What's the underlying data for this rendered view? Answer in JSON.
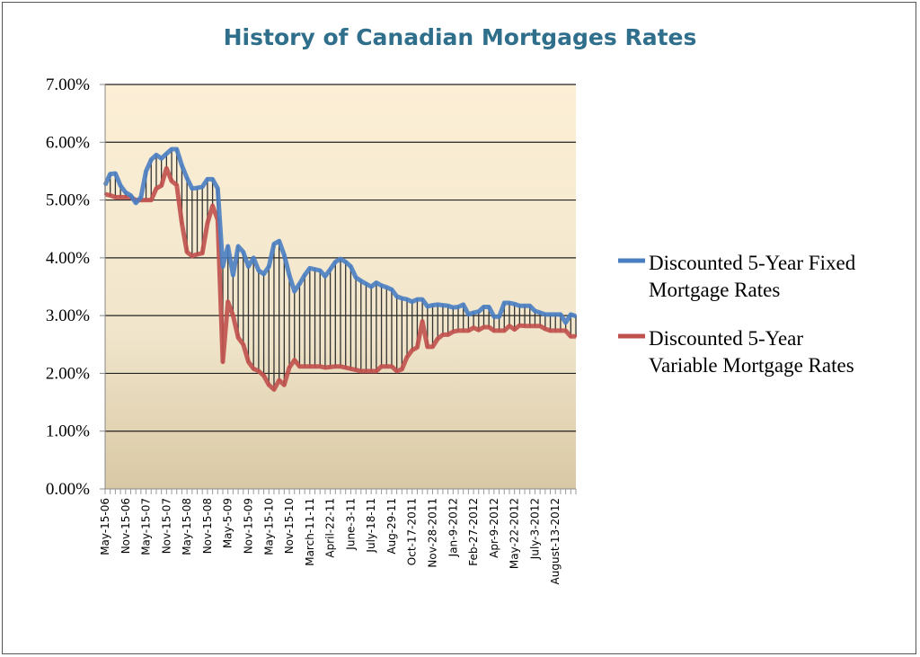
{
  "chart_data": {
    "type": "line",
    "title": "History of Canadian Mortgages Rates",
    "xlabel": "",
    "ylabel": "",
    "ylim": [
      0,
      7
    ],
    "y_ticks": [
      "0.00%",
      "1.00%",
      "2.00%",
      "3.00%",
      "4.00%",
      "5.00%",
      "6.00%",
      "7.00%"
    ],
    "grid": true,
    "legend_position": "right",
    "high_low_lines": true,
    "x_labels": [
      "May-15-06",
      "Nov-15-06",
      "May-15-07",
      "Nov-15-07",
      "May-15-08",
      "Nov-15-08",
      "May-5-09",
      "Nov-15-09",
      "May-15-10",
      "Nov-15-10",
      "March-11-11",
      "April-22-11",
      "June-3-11",
      "July-18-11",
      "Aug-29-11",
      "Oct-17-2011",
      "Nov-28-2011",
      "Jan-9-2012",
      "Feb-27-2012",
      "Apr-9-2012",
      "May-22-2012",
      "July-3-2012",
      "August-13-2012"
    ],
    "points_per_label": 4,
    "series": [
      {
        "name": "Discounted 5-Year Fixed Mortgage Rates",
        "color": "#4a7ec2",
        "values": [
          5.26,
          5.45,
          5.46,
          5.25,
          5.13,
          5.08,
          4.95,
          5.05,
          5.5,
          5.7,
          5.78,
          5.72,
          5.8,
          5.88,
          5.88,
          5.6,
          5.38,
          5.2,
          5.21,
          5.23,
          5.36,
          5.36,
          5.2,
          3.85,
          4.2,
          3.7,
          4.2,
          4.1,
          3.85,
          4.0,
          3.78,
          3.72,
          3.85,
          4.24,
          4.29,
          4.05,
          3.7,
          3.42,
          3.55,
          3.7,
          3.82,
          3.8,
          3.78,
          3.68,
          3.8,
          3.93,
          3.98,
          3.93,
          3.85,
          3.66,
          3.6,
          3.55,
          3.5,
          3.57,
          3.52,
          3.49,
          3.45,
          3.33,
          3.3,
          3.28,
          3.24,
          3.28,
          3.28,
          3.16,
          3.18,
          3.19,
          3.18,
          3.17,
          3.14,
          3.15,
          3.19,
          3.02,
          3.05,
          3.07,
          3.15,
          3.15,
          2.98,
          2.98,
          3.22,
          3.22,
          3.2,
          3.17,
          3.17,
          3.17,
          3.08,
          3.05,
          3.02,
          3.02,
          3.02,
          3.02,
          2.88,
          3.02,
          2.99
        ]
      },
      {
        "name": "Discounted 5-Year Variable Mortgage Rates",
        "color": "#c0504d",
        "values": [
          5.1,
          5.08,
          5.05,
          5.05,
          5.05,
          5.05,
          5.0,
          5.0,
          5.0,
          5.0,
          5.2,
          5.25,
          5.55,
          5.33,
          5.26,
          4.6,
          4.1,
          4.03,
          4.06,
          4.08,
          4.6,
          4.9,
          4.66,
          2.2,
          3.24,
          3.0,
          2.62,
          2.5,
          2.2,
          2.08,
          2.04,
          1.96,
          1.8,
          1.72,
          1.88,
          1.8,
          2.1,
          2.23,
          2.12,
          2.12,
          2.12,
          2.12,
          2.12,
          2.1,
          2.11,
          2.12,
          2.12,
          2.1,
          2.08,
          2.06,
          2.04,
          2.04,
          2.04,
          2.04,
          2.12,
          2.12,
          2.12,
          2.04,
          2.07,
          2.28,
          2.4,
          2.45,
          2.9,
          2.46,
          2.46,
          2.6,
          2.67,
          2.67,
          2.72,
          2.74,
          2.74,
          2.74,
          2.79,
          2.75,
          2.8,
          2.8,
          2.74,
          2.74,
          2.74,
          2.82,
          2.76,
          2.83,
          2.82,
          2.82,
          2.82,
          2.82,
          2.77,
          2.74,
          2.74,
          2.74,
          2.74,
          2.64,
          2.64
        ]
      }
    ],
    "legend": [
      {
        "lines": [
          "Discounted 5-Year Fixed",
          "Mortgage Rates"
        ]
      },
      {
        "lines": [
          "Discounted 5-Year",
          "Variable Mortgage Rates"
        ]
      }
    ]
  }
}
